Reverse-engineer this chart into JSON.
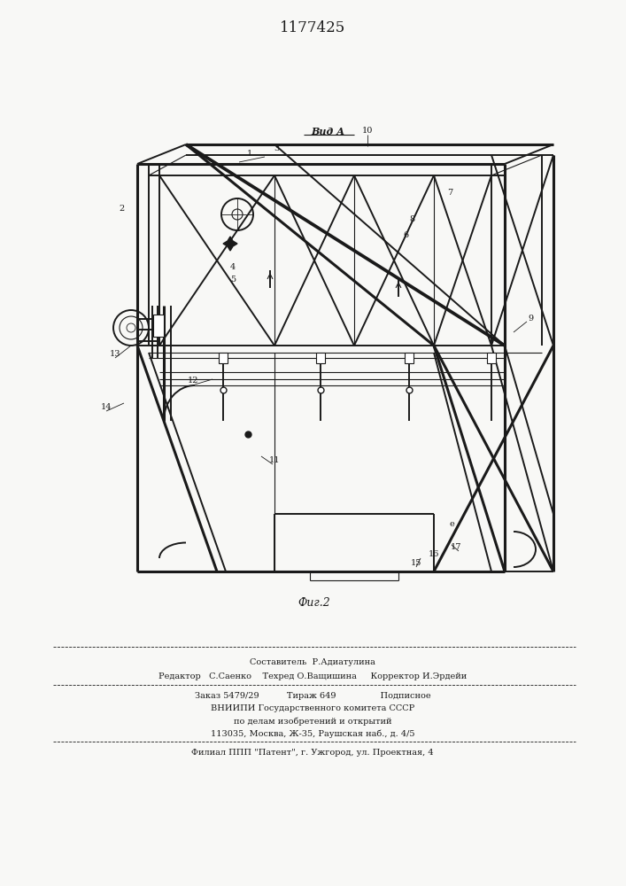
{
  "patent_number": "1177425",
  "fig_label": "Фиг.2",
  "view_label": "Вид А",
  "bg_color": "#f8f8f6",
  "line_color": "#1a1a1a",
  "footer": {
    "line1": "Составитель  Р.Адиатулина",
    "line2": "Редактор   С.Саенко    Техред О.Ващишина     Корректор И.Эрдейи",
    "line3": "Заказ 5479/29          Тираж 649                Подписное",
    "line4": "ВНИИПИ Государственного комитета СССР",
    "line5": "по делам изобретений и открытий",
    "line6": "113035, Москва, Ж-35, Раушская наб., д. 4/5",
    "line7": "Филиал ППП \"Патент\", г. Ужгород, ул. Проектная, 4"
  }
}
